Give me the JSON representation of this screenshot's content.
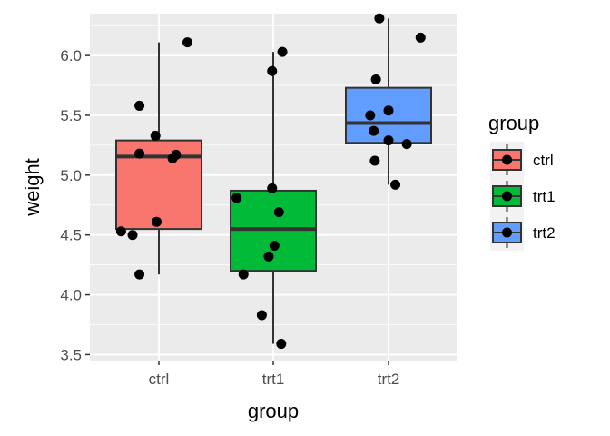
{
  "chart_data": {
    "type": "boxplot",
    "title": "",
    "xlabel": "group",
    "ylabel": "weight",
    "ylim": [
      3.45,
      6.35
    ],
    "yticks": [
      3.5,
      4.0,
      4.5,
      5.0,
      5.5,
      6.0
    ],
    "ytick_labels": [
      "3.5",
      "4.0",
      "4.5",
      "5.0",
      "5.5",
      "6.0"
    ],
    "categories": [
      "ctrl",
      "trt1",
      "trt2"
    ],
    "grid": true,
    "legend": {
      "title": "group",
      "position": "right",
      "entries": [
        "ctrl",
        "trt1",
        "trt2"
      ]
    },
    "series": [
      {
        "name": "ctrl",
        "color": "#F8766D",
        "box": {
          "whisker_low": 4.17,
          "q1": 4.55,
          "median": 5.155,
          "q3": 5.29,
          "whisker_high": 6.11
        },
        "points": [
          {
            "x_jitter": -0.17,
            "y": 4.17
          },
          {
            "x_jitter": -0.17,
            "y": 5.58
          },
          {
            "x_jitter": -0.17,
            "y": 5.18
          },
          {
            "x_jitter": 0.25,
            "y": 6.11
          },
          {
            "x_jitter": -0.23,
            "y": 4.5
          },
          {
            "x_jitter": -0.02,
            "y": 4.61
          },
          {
            "x_jitter": 0.15,
            "y": 5.17
          },
          {
            "x_jitter": -0.33,
            "y": 4.53
          },
          {
            "x_jitter": -0.03,
            "y": 5.33
          },
          {
            "x_jitter": 0.12,
            "y": 5.14
          }
        ]
      },
      {
        "name": "trt1",
        "color": "#00BA38",
        "box": {
          "whisker_low": 3.59,
          "q1": 4.2,
          "median": 4.55,
          "q3": 4.87,
          "whisker_high": 6.03
        },
        "points": [
          {
            "x_jitter": -0.32,
            "y": 4.81
          },
          {
            "x_jitter": -0.26,
            "y": 4.17
          },
          {
            "x_jitter": 0.01,
            "y": 4.41
          },
          {
            "x_jitter": 0.07,
            "y": 3.59
          },
          {
            "x_jitter": -0.01,
            "y": 5.87
          },
          {
            "x_jitter": -0.1,
            "y": 3.83
          },
          {
            "x_jitter": 0.08,
            "y": 6.03
          },
          {
            "x_jitter": -0.01,
            "y": 4.89
          },
          {
            "x_jitter": -0.04,
            "y": 4.32
          },
          {
            "x_jitter": 0.05,
            "y": 4.69
          }
        ]
      },
      {
        "name": "trt2",
        "color": "#619CFF",
        "box": {
          "whisker_low": 4.92,
          "q1": 5.27,
          "median": 5.435,
          "q3": 5.73,
          "whisker_high": 6.31
        },
        "points": [
          {
            "x_jitter": -0.08,
            "y": 6.31
          },
          {
            "x_jitter": -0.12,
            "y": 5.12
          },
          {
            "x_jitter": 0.0,
            "y": 5.54
          },
          {
            "x_jitter": -0.16,
            "y": 5.5
          },
          {
            "x_jitter": -0.13,
            "y": 5.37
          },
          {
            "x_jitter": 0.0,
            "y": 5.29
          },
          {
            "x_jitter": 0.06,
            "y": 4.92
          },
          {
            "x_jitter": 0.28,
            "y": 6.15
          },
          {
            "x_jitter": -0.11,
            "y": 5.8
          },
          {
            "x_jitter": 0.16,
            "y": 5.26
          }
        ]
      }
    ]
  }
}
